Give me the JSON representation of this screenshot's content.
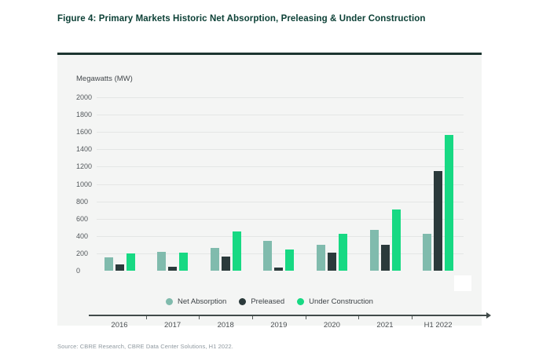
{
  "figure": {
    "title": "Figure 4: Primary Markets Historic Net Absorption, Preleasing & Under Construction",
    "source": "Source: CBRE Research, CBRE Data Center Solutions, H1 2022."
  },
  "chart_data": {
    "type": "bar",
    "title": "Primary Markets Historic Net Absorption, Preleasing & Under Construction",
    "ylabel": "Megawatts (MW)",
    "xlabel": "",
    "ylim": [
      0,
      2000
    ],
    "yticks": [
      2000,
      1800,
      1600,
      1400,
      1200,
      1000,
      800,
      600,
      400,
      200,
      0
    ],
    "grid": true,
    "legend_position": "bottom",
    "categories": [
      "2016",
      "2017",
      "2018",
      "2019",
      "2020",
      "2021",
      "H1 2022"
    ],
    "series": [
      {
        "name": "Net Absorption",
        "color": "#80BBAD",
        "values": [
          150,
          215,
          260,
          340,
          300,
          470,
          430
        ]
      },
      {
        "name": "Preleased",
        "color": "#2B3A3B",
        "values": [
          70,
          45,
          160,
          35,
          205,
          295,
          1150
        ]
      },
      {
        "name": "Under Construction",
        "color": "#17D983",
        "values": [
          200,
          205,
          455,
          245,
          430,
          710,
          1570
        ]
      }
    ]
  },
  "colors": {
    "title_text": "#0c4036",
    "panel_background": "#f4f5f4",
    "panel_top_border": "#1c3530",
    "gridline": "#e4e6e5",
    "axis_line": "#414b4a",
    "tick_text": "#53585c",
    "source_text": "#8f99a0"
  }
}
